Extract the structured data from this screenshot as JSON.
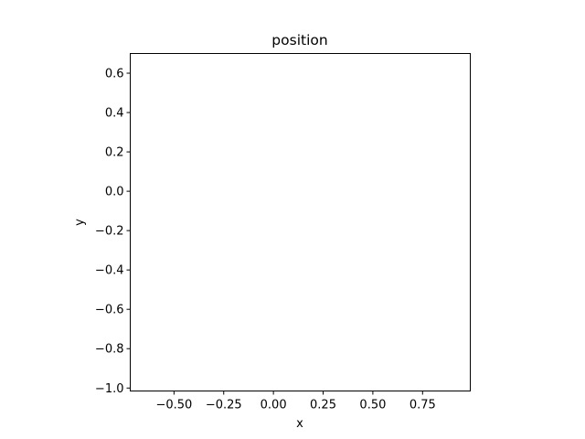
{
  "chart_data": {
    "type": "scatter",
    "title": "position",
    "xlabel": "x",
    "ylabel": "y",
    "xlim": [
      -0.72,
      0.99
    ],
    "ylim": [
      -1.015,
      0.7
    ],
    "xticks": [
      -0.5,
      -0.25,
      0.0,
      0.25,
      0.5,
      0.75
    ],
    "xtick_labels": [
      "−0.50",
      "−0.25",
      "0.00",
      "0.25",
      "0.50",
      "0.75"
    ],
    "yticks": [
      0.6,
      0.4,
      0.2,
      0.0,
      -0.2,
      -0.4,
      -0.6,
      -0.8,
      -1.0
    ],
    "ytick_labels": [
      "0.6",
      "0.4",
      "0.2",
      "0.0",
      "−0.2",
      "−0.4",
      "−0.6",
      "−0.8",
      "−1.0"
    ],
    "series": [],
    "grid": false,
    "legend": "none"
  }
}
